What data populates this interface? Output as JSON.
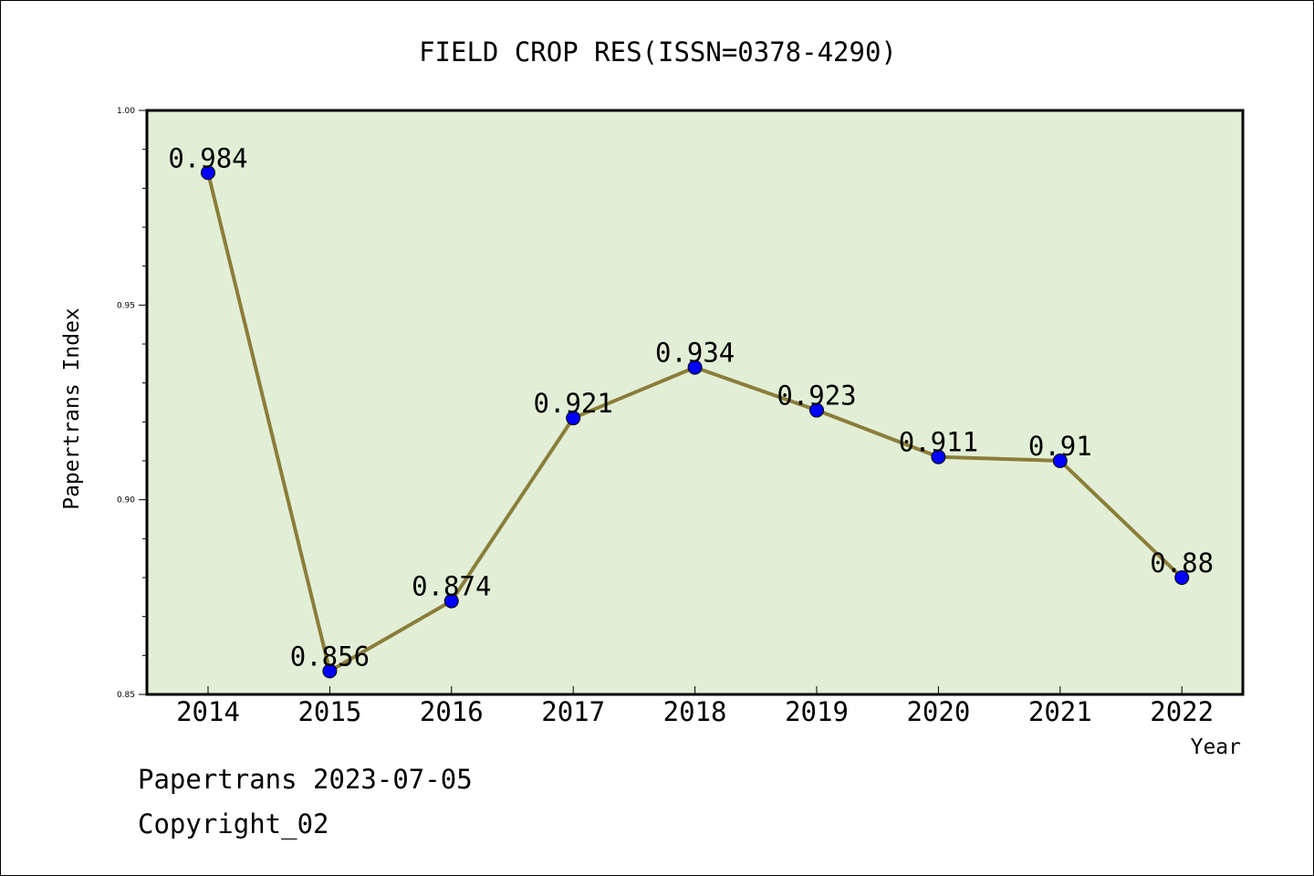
{
  "chart_data": {
    "type": "line",
    "title": "FIELD CROP RES(ISSN=0378-4290)",
    "xlabel": "Year",
    "ylabel": "Papertrans Index",
    "categories": [
      "2014",
      "2015",
      "2016",
      "2017",
      "2018",
      "2019",
      "2020",
      "2021",
      "2022"
    ],
    "values": [
      0.984,
      0.856,
      0.874,
      0.921,
      0.934,
      0.923,
      0.911,
      0.91,
      0.88
    ],
    "data_labels": [
      "0.984",
      "0.856",
      "0.874",
      "0.921",
      "0.934",
      "0.923",
      "0.911",
      "0.91",
      "0.88"
    ],
    "ylim": [
      0.85,
      1.0
    ],
    "yticks": [
      "0.85",
      "0.90",
      "0.95",
      "1.00"
    ],
    "grid": false,
    "colors": {
      "plot_background": "#e2efd6",
      "line": "#8b7d3a",
      "marker": "#0000ff"
    }
  },
  "footer": {
    "date_text": "Papertrans 2023-07-05",
    "copyright_text": "Copyright_02"
  }
}
